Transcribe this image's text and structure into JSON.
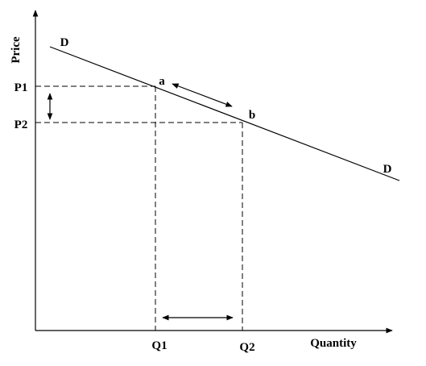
{
  "axes": {
    "y_label": "Price",
    "x_label": "Quantity"
  },
  "curve": {
    "label_start": "D",
    "label_end": "D"
  },
  "points": [
    {
      "label": "a"
    },
    {
      "label": "b"
    }
  ],
  "price_levels": [
    "P1",
    "P2"
  ],
  "quantity_levels": [
    "Q1",
    "Q2"
  ]
}
